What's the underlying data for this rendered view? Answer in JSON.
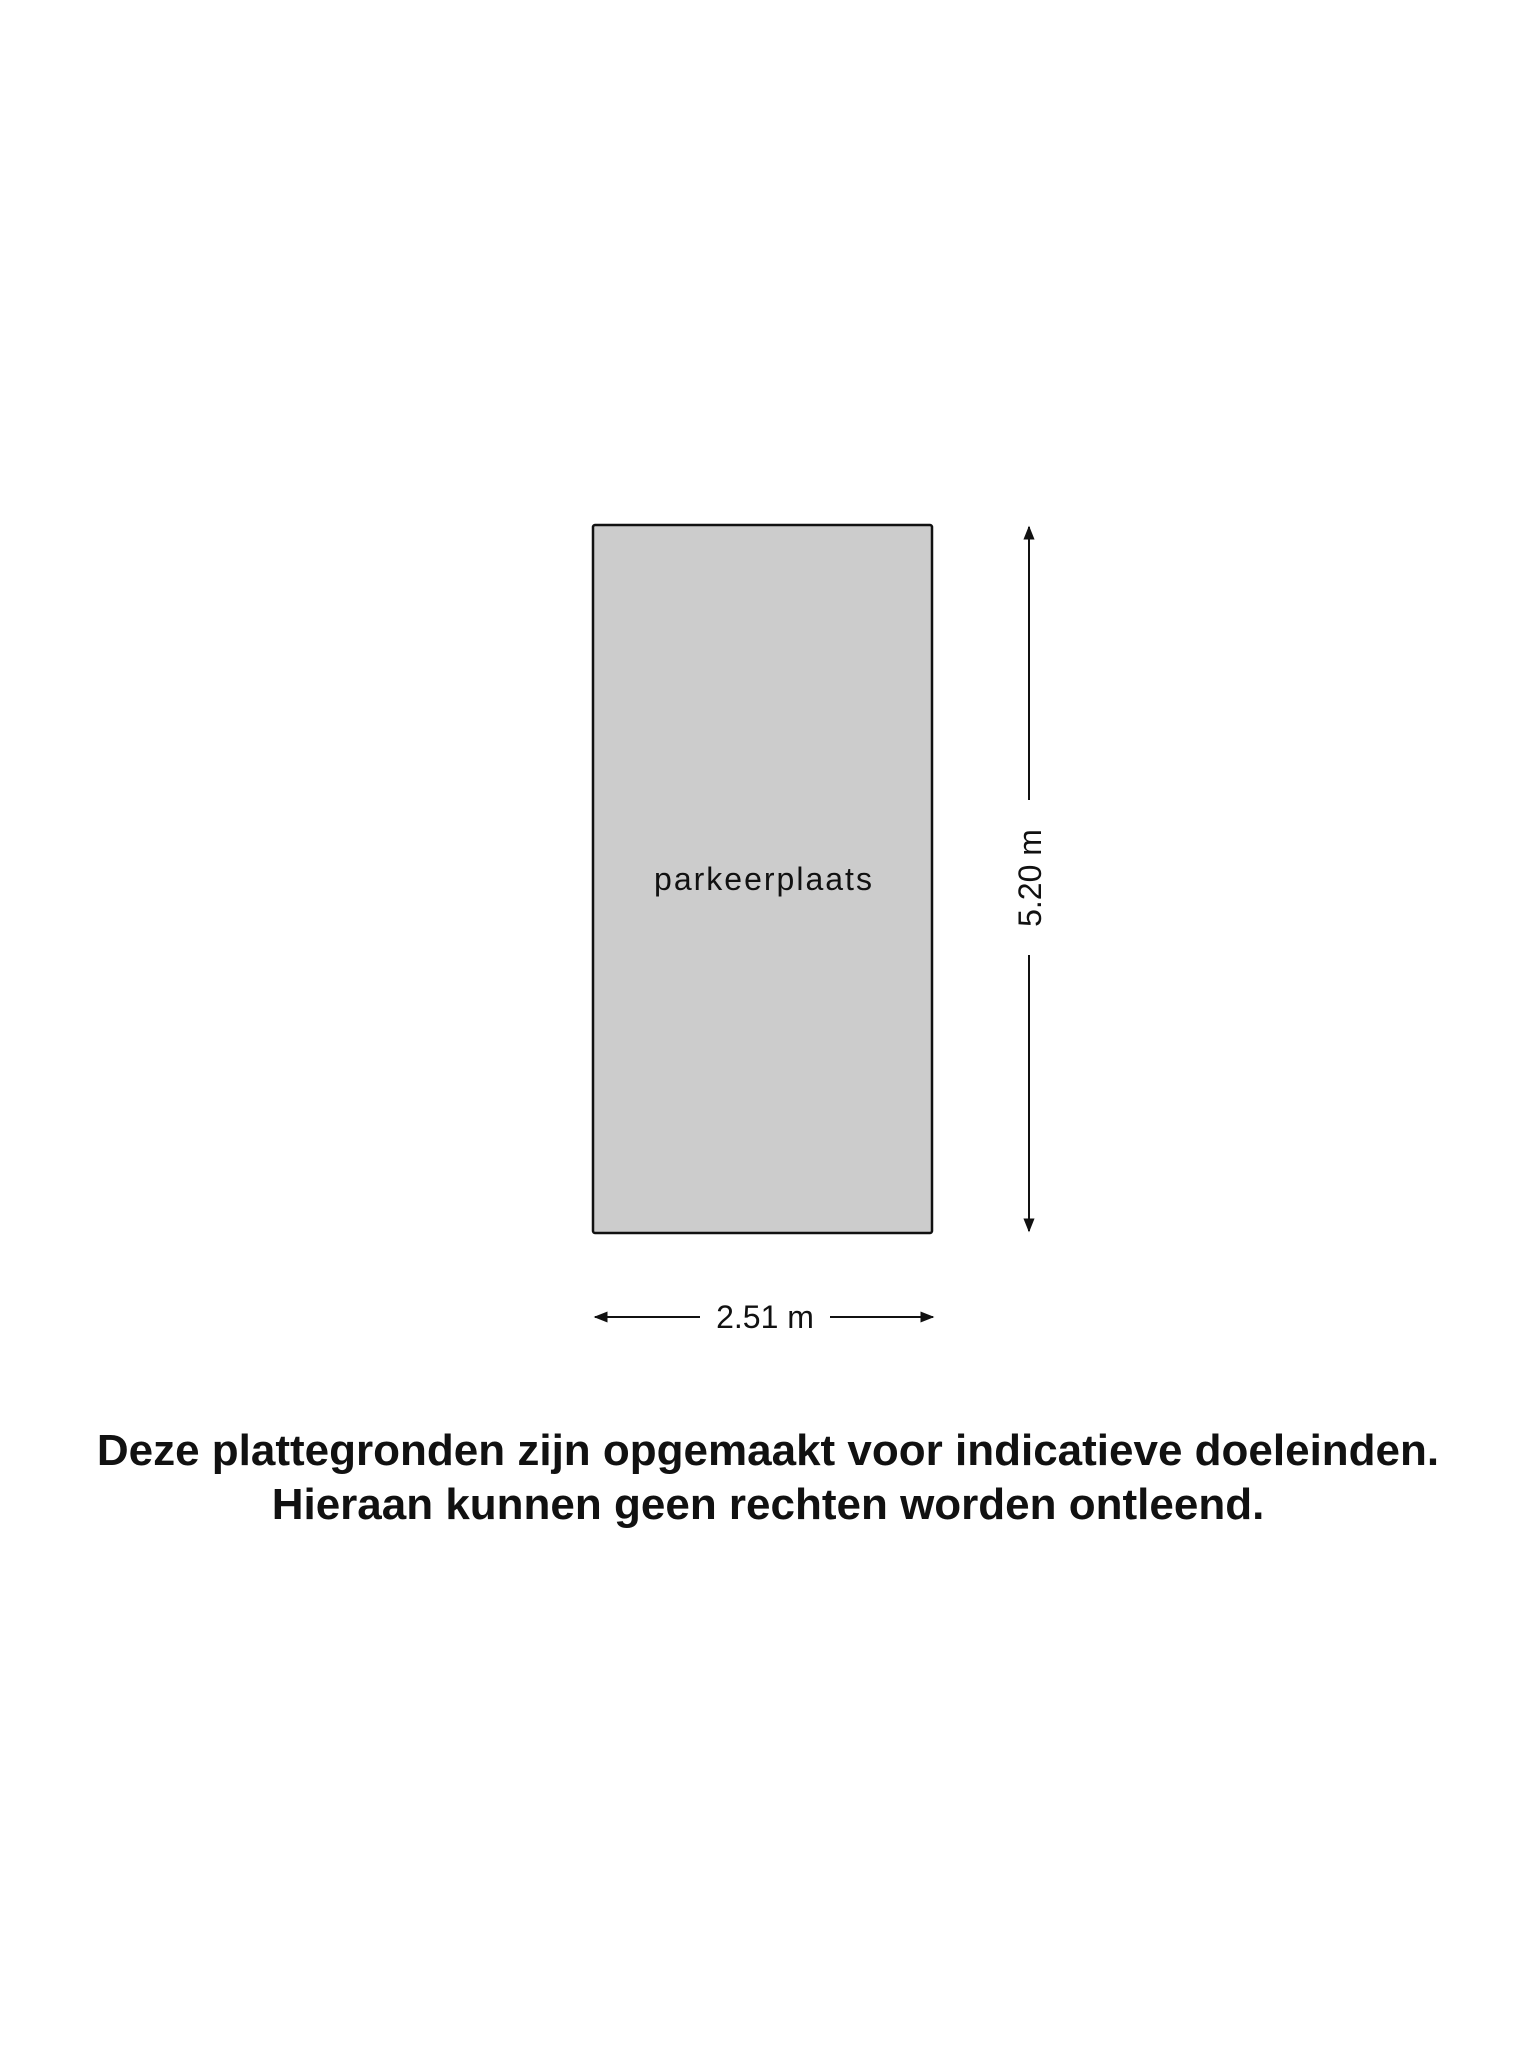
{
  "floorplan": {
    "room_label": "parkeerplaats",
    "room_fill": "#cccccc",
    "width_label": "2.51 m",
    "height_label": "5.20 m"
  },
  "disclaimer": {
    "line1": "Deze plattegronden zijn opgemaakt voor indicatieve doeleinden.",
    "line2": "Hieraan kunnen geen rechten worden ontleend."
  }
}
